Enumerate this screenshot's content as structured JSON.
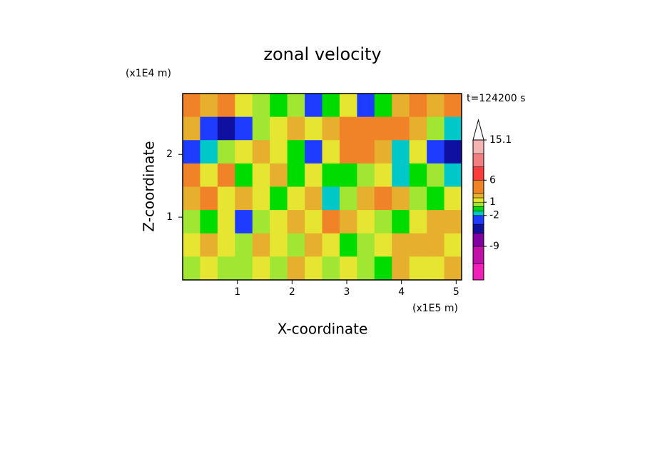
{
  "chart_data": {
    "type": "contour",
    "title": "zonal velocity",
    "xlabel": "X-coordinate",
    "ylabel": "Z-coordinate",
    "x_scale_label": "(x1E5 m)",
    "y_scale_label": "(x1E4 m)",
    "annotation": "t=124200 s",
    "xlim": [
      0,
      5.1
    ],
    "ylim": [
      0,
      2.97
    ],
    "xticks": [
      1,
      2,
      3,
      4,
      5
    ],
    "yticks": [
      1,
      2
    ],
    "levels": [
      -16.6,
      -13,
      -9,
      -6,
      -4,
      -2,
      -1,
      0,
      1,
      2,
      3,
      6,
      9,
      12,
      15.1
    ],
    "level_colors": [
      "#f020b8",
      "#c010a8",
      "#8000a0",
      "#1010a0",
      "#1e3cff",
      "#00c8c8",
      "#00dc00",
      "#a0e632",
      "#e6e632",
      "#e6af2d",
      "#f08228",
      "#fa3c3c",
      "#f08080",
      "#f4b4b4"
    ],
    "colorbar_ticks": [
      15.1,
      6,
      1,
      -2,
      -9
    ],
    "z": [
      [
        4,
        2,
        3,
        1,
        0,
        -1,
        0,
        -3,
        -1,
        1,
        -4,
        -1,
        2,
        3,
        2,
        4
      ],
      [
        2,
        -4,
        -6,
        -4,
        0,
        1,
        2,
        1,
        2,
        3,
        4,
        3,
        3,
        2,
        0,
        -2
      ],
      [
        -4,
        -2,
        0,
        1,
        2,
        1,
        -1,
        -3,
        1,
        3,
        3,
        2,
        -2,
        1,
        -4,
        -6
      ],
      [
        3,
        1,
        3,
        -1,
        1,
        2,
        -1,
        1,
        -1,
        -1,
        0,
        1,
        -2,
        -1,
        0,
        -2
      ],
      [
        2,
        4,
        1,
        2,
        1,
        -1,
        1,
        2,
        -2,
        0,
        2,
        3,
        2,
        0,
        -1,
        1
      ],
      [
        0,
        -1,
        1,
        -3,
        0,
        1,
        2,
        1,
        3,
        2,
        1,
        0,
        -1,
        1,
        2,
        2
      ],
      [
        1,
        2,
        1,
        0,
        2,
        1,
        0,
        2,
        1,
        -1,
        0,
        1,
        2,
        2,
        2,
        1
      ],
      [
        0,
        1,
        0,
        0,
        1,
        0,
        2,
        1,
        0,
        1,
        0,
        -1,
        2,
        1,
        1,
        2
      ]
    ]
  }
}
